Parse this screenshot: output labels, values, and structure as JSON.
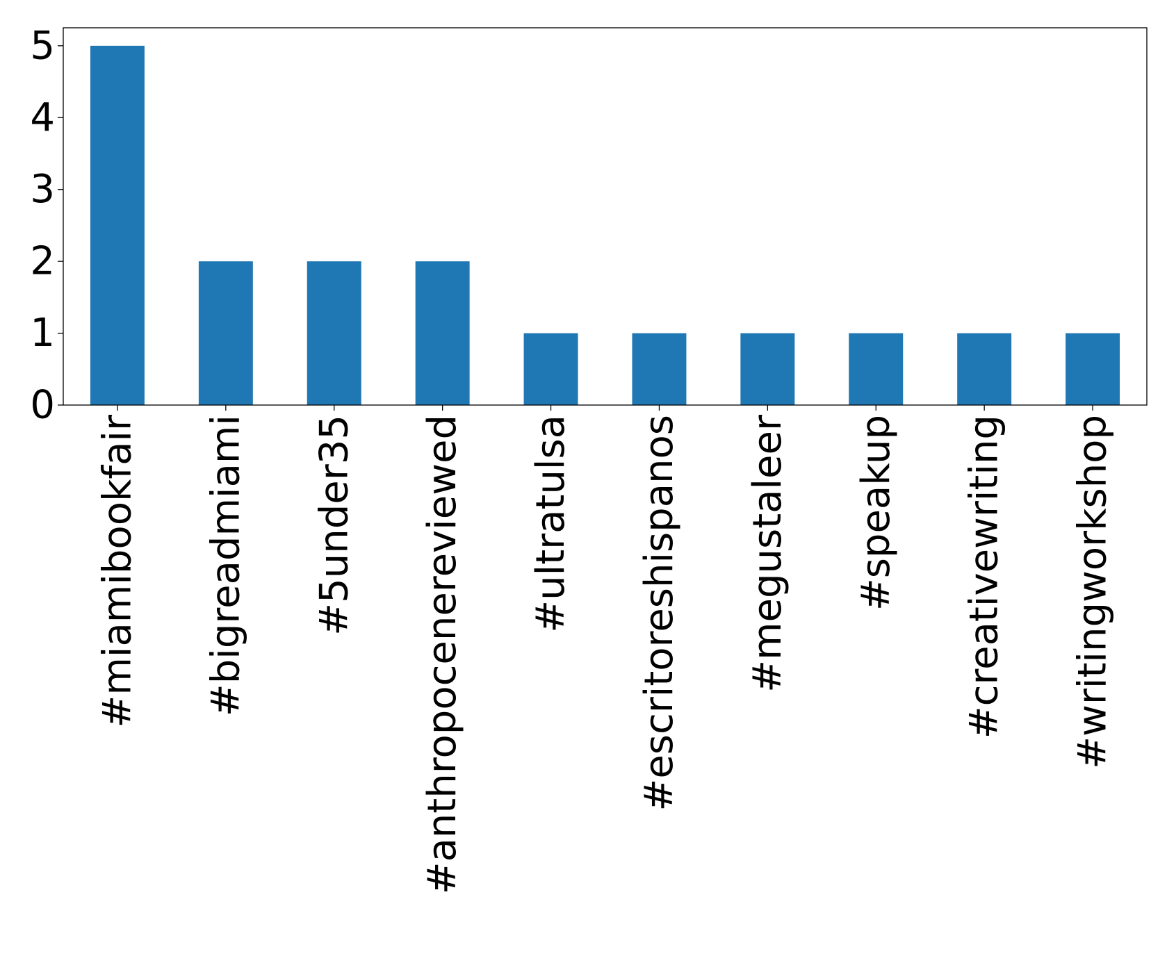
{
  "chart_data": {
    "type": "bar",
    "categories": [
      "#miamibookfair",
      "#bigreadmiami",
      "#5under35",
      "#anthropocenereviewed",
      "#ultratulsa",
      "#escritoreshispanos",
      "#megustaleer",
      "#speakup",
      "#creativewriting",
      "#writingworkshop"
    ],
    "values": [
      5,
      2,
      2,
      2,
      1,
      1,
      1,
      1,
      1,
      1
    ],
    "yticks": [
      "0",
      "1",
      "2",
      "3",
      "4",
      "5"
    ],
    "ylim": [
      0,
      5.25
    ],
    "title": "",
    "xlabel": "",
    "ylabel": "",
    "grid": false,
    "bar_color": "#1f77b4"
  }
}
